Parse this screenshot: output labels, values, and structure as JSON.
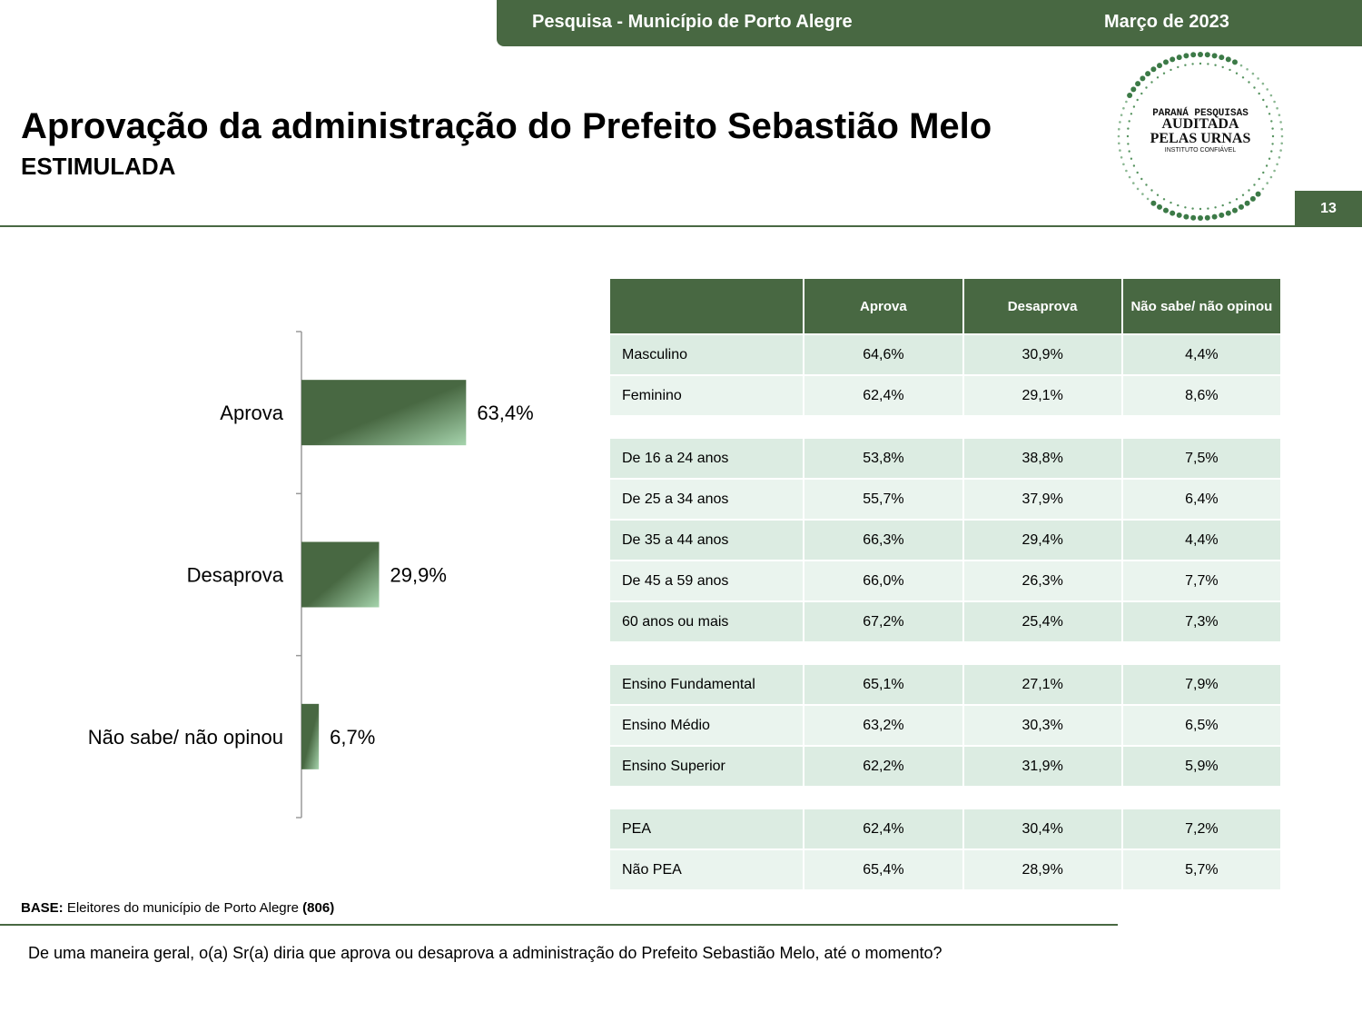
{
  "header": {
    "survey": "Pesquisa - Município de Porto Alegre",
    "date": "Março de 2023"
  },
  "title": "Aprovação da administração do Prefeito Sebastião Melo",
  "subtitle": "ESTIMULADA",
  "page_number": "13",
  "logo": {
    "line1": "PARANÁ PESQUISAS",
    "line2": "AUDITADA",
    "line3": "PELAS URNAS",
    "line4": "INSTITUTO CONFIÁVEL"
  },
  "chart_data": {
    "type": "bar",
    "orientation": "horizontal",
    "title": "",
    "xlabel": "",
    "ylabel": "",
    "categories": [
      "Aprova",
      "Desaprova",
      "Não sabe/ não opinou"
    ],
    "values": [
      63.4,
      29.9,
      6.7
    ],
    "value_labels": [
      "63,4%",
      "29,9%",
      "6,7%"
    ],
    "xlim": [
      0,
      100
    ],
    "grid": false,
    "legend": "none",
    "color": "#486842"
  },
  "table": {
    "headers": [
      "",
      "Aprova",
      "Desaprova",
      "Não sabe/ não opinou"
    ],
    "groups": [
      [
        [
          "Masculino",
          "64,6%",
          "30,9%",
          "4,4%"
        ],
        [
          "Feminino",
          "62,4%",
          "29,1%",
          "8,6%"
        ]
      ],
      [
        [
          "De 16 a 24 anos",
          "53,8%",
          "38,8%",
          "7,5%"
        ],
        [
          "De 25 a 34 anos",
          "55,7%",
          "37,9%",
          "6,4%"
        ],
        [
          "De 35 a 44 anos",
          "66,3%",
          "29,4%",
          "4,4%"
        ],
        [
          "De 45 a 59 anos",
          "66,0%",
          "26,3%",
          "7,7%"
        ],
        [
          "60 anos ou mais",
          "67,2%",
          "25,4%",
          "7,3%"
        ]
      ],
      [
        [
          "Ensino Fundamental",
          "65,1%",
          "27,1%",
          "7,9%"
        ],
        [
          "Ensino Médio",
          "63,2%",
          "30,3%",
          "6,5%"
        ],
        [
          "Ensino Superior",
          "62,2%",
          "31,9%",
          "5,9%"
        ]
      ],
      [
        [
          "PEA",
          "62,4%",
          "30,4%",
          "7,2%"
        ],
        [
          "Não PEA",
          "65,4%",
          "28,9%",
          "5,7%"
        ]
      ]
    ]
  },
  "base": {
    "label": "BASE:",
    "text": "Eleitores do município de Porto Alegre",
    "count": "(806)"
  },
  "question": "De uma maneira geral, o(a) Sr(a) diria que aprova ou desaprova a administração do Prefeito Sebastião Melo, até o momento?"
}
